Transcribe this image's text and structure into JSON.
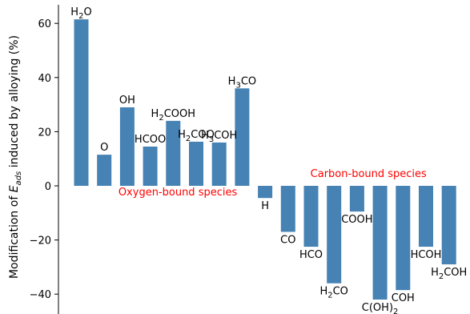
{
  "chart_data": {
    "type": "bar",
    "ylabel": "Modification of  E_ads induced by alloying (%)",
    "ylim": [
      -47,
      67
    ],
    "yticks": [
      60,
      40,
      20,
      0,
      -20,
      -40
    ],
    "ytick_labels": [
      "60",
      "40",
      "20",
      "0",
      "−20",
      "−40"
    ],
    "grid": false,
    "bar_color": "#4682b4",
    "annotation_color": "#ff0000",
    "categories": [
      "H2O",
      "O",
      "OH",
      "HCOO",
      "H2COOH",
      "H2COO",
      "H3COH",
      "H3CO",
      "H",
      "CO",
      "HCO",
      "H2CO",
      "COOH",
      "C(OH)2",
      "COH",
      "HCOH",
      "H2COH"
    ],
    "values": [
      61.5,
      11.5,
      29,
      14.5,
      24,
      16.3,
      16,
      36,
      -4.5,
      -17,
      -22.5,
      -36,
      -9.5,
      -42,
      -38.5,
      -22.5,
      -29
    ],
    "annotations": [
      {
        "text": "Oxygen-bound species",
        "x": 4.2,
        "y": -3.5
      },
      {
        "text": "Carbon-bound species",
        "x": 12.5,
        "y": 3.3
      }
    ]
  }
}
